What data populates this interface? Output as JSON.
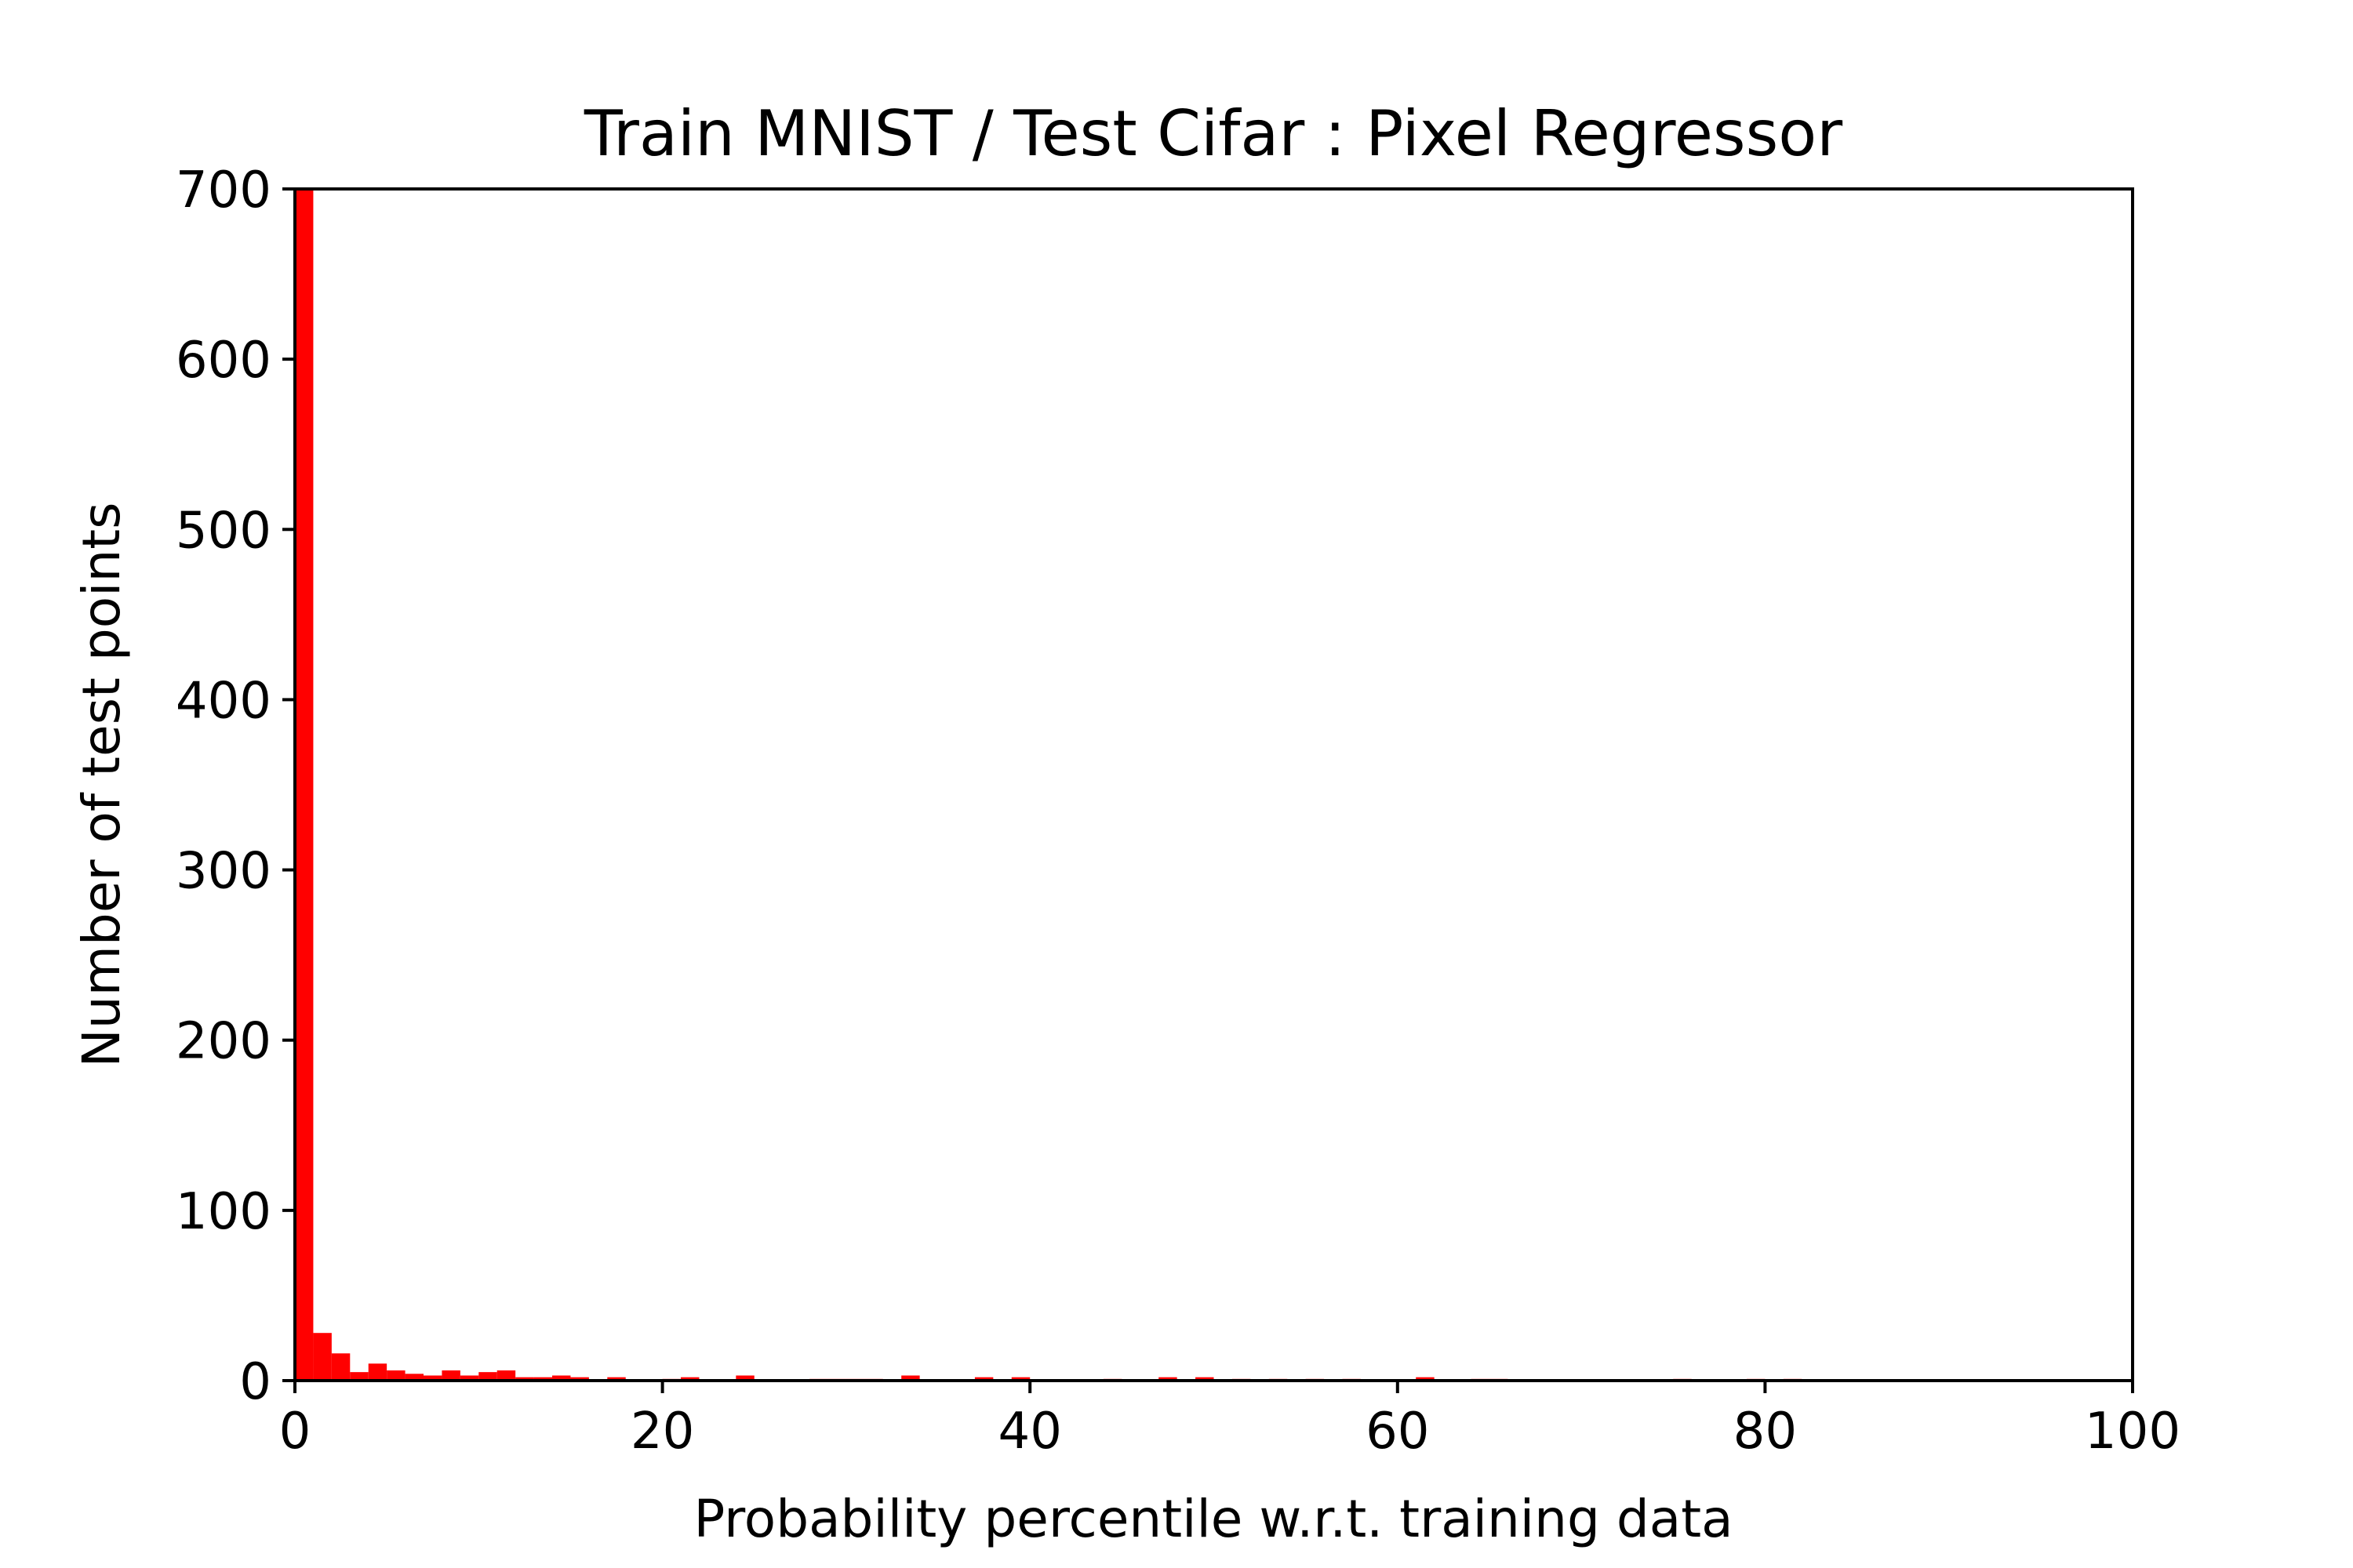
{
  "chart_data": {
    "type": "bar",
    "title": "Train MNIST / Test Cifar : Pixel Regressor",
    "xlabel": "Probability percentile w.r.t. training data",
    "ylabel": "Number of test points",
    "xlim": [
      0,
      100
    ],
    "ylim": [
      0,
      700
    ],
    "xticks": [
      "0",
      "20",
      "40",
      "60",
      "80",
      "100"
    ],
    "yticks": [
      "0",
      "100",
      "200",
      "300",
      "400",
      "500",
      "600",
      "700"
    ],
    "bin_width": 1,
    "bins": [
      {
        "x": 0,
        "y": 700
      },
      {
        "x": 1,
        "y": 28
      },
      {
        "x": 2,
        "y": 16
      },
      {
        "x": 3,
        "y": 5
      },
      {
        "x": 4,
        "y": 10
      },
      {
        "x": 5,
        "y": 6
      },
      {
        "x": 6,
        "y": 4
      },
      {
        "x": 7,
        "y": 3
      },
      {
        "x": 8,
        "y": 6
      },
      {
        "x": 9,
        "y": 3
      },
      {
        "x": 10,
        "y": 5
      },
      {
        "x": 11,
        "y": 6
      },
      {
        "x": 12,
        "y": 2
      },
      {
        "x": 13,
        "y": 2
      },
      {
        "x": 14,
        "y": 3
      },
      {
        "x": 15,
        "y": 2
      },
      {
        "x": 17,
        "y": 2
      },
      {
        "x": 20,
        "y": 1
      },
      {
        "x": 21,
        "y": 2
      },
      {
        "x": 24,
        "y": 3
      },
      {
        "x": 28,
        "y": 1
      },
      {
        "x": 29,
        "y": 1
      },
      {
        "x": 30,
        "y": 1
      },
      {
        "x": 31,
        "y": 1
      },
      {
        "x": 33,
        "y": 3
      },
      {
        "x": 37,
        "y": 2
      },
      {
        "x": 39,
        "y": 2
      },
      {
        "x": 44,
        "y": 1
      },
      {
        "x": 47,
        "y": 2
      },
      {
        "x": 49,
        "y": 2
      },
      {
        "x": 51,
        "y": 1
      },
      {
        "x": 53,
        "y": 1
      },
      {
        "x": 55,
        "y": 1
      },
      {
        "x": 57,
        "y": 1
      },
      {
        "x": 61,
        "y": 2
      },
      {
        "x": 64,
        "y": 1
      },
      {
        "x": 65,
        "y": 1
      },
      {
        "x": 75,
        "y": 1
      },
      {
        "x": 79,
        "y": 1
      },
      {
        "x": 81,
        "y": 1
      }
    ],
    "colors": {
      "bar": "#ff0000",
      "axis": "#000000"
    },
    "grid": false,
    "legend": "none"
  }
}
